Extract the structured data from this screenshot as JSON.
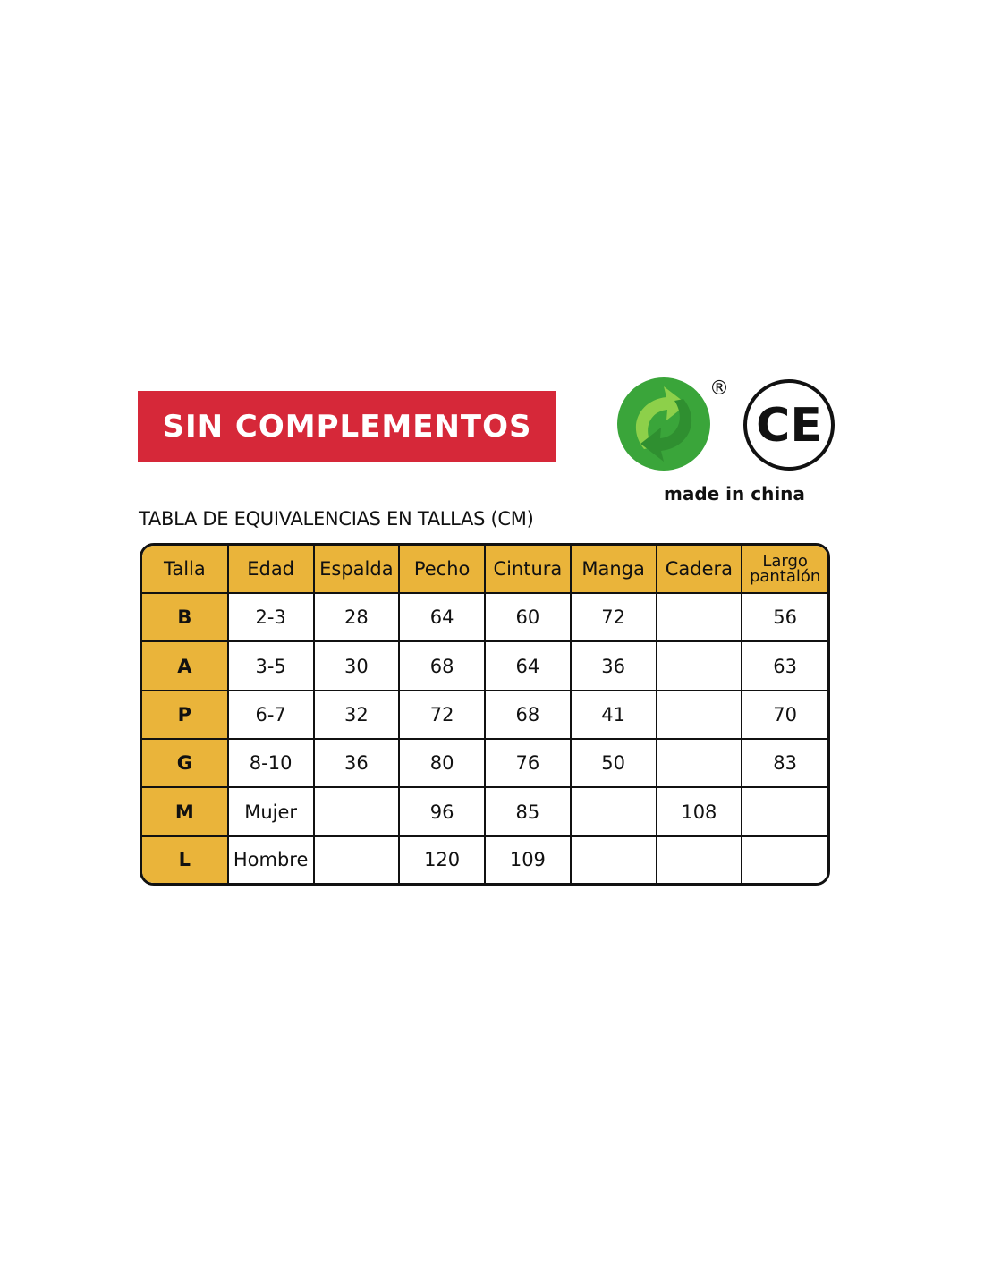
{
  "banner": {
    "label": "SIN COMPLEMENTOS",
    "color": "#d62839"
  },
  "logos": {
    "green_dot": "green-dot-recycling-logo",
    "registered": "®",
    "ce": "CE",
    "made_in": "made in china"
  },
  "table_title": "TABLA DE EQUIVALENCIAS EN TALLAS (CM)",
  "table": {
    "header_color": "#eab43a",
    "headers": [
      "Talla",
      "Edad",
      "Espalda",
      "Pecho",
      "Cintura",
      "Manga",
      "Cadera",
      "Largo pantalón"
    ],
    "rows": [
      [
        "B",
        "2-3",
        "28",
        "64",
        "60",
        "72",
        "",
        "56"
      ],
      [
        "A",
        "3-5",
        "30",
        "68",
        "64",
        "36",
        "",
        "63"
      ],
      [
        "P",
        "6-7",
        "32",
        "72",
        "68",
        "41",
        "",
        "70"
      ],
      [
        "G",
        "8-10",
        "36",
        "80",
        "76",
        "50",
        "",
        "83"
      ],
      [
        "M",
        "Mujer",
        "",
        "96",
        "85",
        "",
        "108",
        ""
      ],
      [
        "L",
        "Hombre",
        "",
        "120",
        "109",
        "",
        "",
        ""
      ]
    ]
  }
}
